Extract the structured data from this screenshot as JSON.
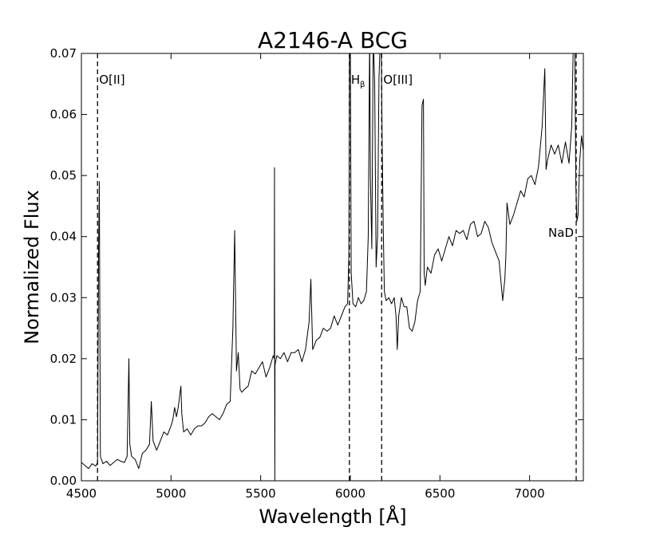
{
  "chart_data": {
    "type": "line",
    "title": "A2146-A BCG",
    "xlabel": "Wavelength [Å]",
    "ylabel": "Normalized Flux",
    "xlim": [
      4500,
      7300
    ],
    "ylim": [
      0,
      0.07
    ],
    "xticks": [
      4500,
      5000,
      5500,
      6000,
      6500,
      7000
    ],
    "xtick_labels": [
      "4500",
      "5000",
      "5500",
      "6000",
      "6500",
      "7000"
    ],
    "yticks": [
      0,
      0.01,
      0.02,
      0.03,
      0.04,
      0.05,
      0.06,
      0.07
    ],
    "ytick_labels": [
      "0.00",
      "0.01",
      "0.02",
      "0.03",
      "0.04",
      "0.05",
      "0.06",
      "0.07"
    ],
    "grid": false,
    "line_color": "#000000",
    "series": [
      {
        "x": [
          4500,
          4520,
          4540,
          4560,
          4580,
          4590,
          4596,
          4600,
          4606,
          4620,
          4640,
          4660,
          4680,
          4700,
          4720,
          4740,
          4755,
          4765,
          4770,
          4780,
          4800,
          4820,
          4840,
          4860,
          4880,
          4890,
          4900,
          4920,
          4940,
          4960,
          4980,
          5000,
          5010,
          5020,
          5030,
          5040,
          5055,
          5060,
          5070,
          5090,
          5110,
          5130,
          5150,
          5170,
          5190,
          5210,
          5230,
          5250,
          5270,
          5290,
          5310,
          5330,
          5345,
          5355,
          5365,
          5375,
          5385,
          5395,
          5410,
          5430,
          5450,
          5470,
          5490,
          5510,
          5530,
          5550,
          5570,
          5576,
          5577,
          5578,
          5579,
          5580,
          5590,
          5610,
          5630,
          5650,
          5670,
          5690,
          5710,
          5730,
          5750,
          5770,
          5780,
          5790,
          5810,
          5830,
          5850,
          5870,
          5890,
          5910,
          5930,
          5950,
          5970,
          5985,
          5992,
          5996,
          6000,
          6005,
          6015,
          6030,
          6045,
          6060,
          6075,
          6090,
          6100,
          6108,
          6112,
          6120,
          6128,
          6136,
          6144,
          6152,
          6160,
          6168,
          6172,
          6178,
          6184,
          6190,
          6200,
          6215,
          6230,
          6245,
          6255,
          6262,
          6270,
          6285,
          6300,
          6315,
          6330,
          6345,
          6360,
          6375,
          6390,
          6400,
          6408,
          6412,
          6418,
          6430,
          6450,
          6470,
          6490,
          6510,
          6530,
          6550,
          6570,
          6590,
          6610,
          6630,
          6650,
          6670,
          6690,
          6710,
          6730,
          6750,
          6770,
          6790,
          6810,
          6830,
          6850,
          6862,
          6868,
          6874,
          6890,
          6910,
          6930,
          6950,
          6970,
          6990,
          7010,
          7030,
          7050,
          7070,
          7085,
          7092,
          7100,
          7120,
          7140,
          7160,
          7180,
          7200,
          7220,
          7235,
          7245,
          7252,
          7258,
          7264,
          7270,
          7280,
          7290,
          7300
        ],
        "y": [
          0.003,
          0.0025,
          0.002,
          0.0028,
          0.0024,
          0.003,
          0.038,
          0.049,
          0.004,
          0.0028,
          0.0032,
          0.0025,
          0.003,
          0.0035,
          0.0032,
          0.003,
          0.004,
          0.02,
          0.006,
          0.004,
          0.0035,
          0.002,
          0.0045,
          0.005,
          0.006,
          0.013,
          0.0065,
          0.005,
          0.0065,
          0.008,
          0.0075,
          0.009,
          0.01,
          0.012,
          0.0105,
          0.012,
          0.0155,
          0.011,
          0.008,
          0.0085,
          0.0075,
          0.0085,
          0.009,
          0.009,
          0.0095,
          0.0105,
          0.011,
          0.0105,
          0.01,
          0.011,
          0.0125,
          0.013,
          0.025,
          0.041,
          0.018,
          0.021,
          0.015,
          0.0145,
          0.015,
          0.0155,
          0.018,
          0.0175,
          0.0185,
          0.0195,
          0.017,
          0.0185,
          0.0205,
          0.02,
          0.0513,
          0.021,
          0.0,
          0.019,
          0.0205,
          0.02,
          0.021,
          0.0195,
          0.021,
          0.021,
          0.0215,
          0.0195,
          0.0215,
          0.026,
          0.033,
          0.0215,
          0.023,
          0.0235,
          0.025,
          0.0245,
          0.025,
          0.027,
          0.0255,
          0.027,
          0.0285,
          0.029,
          0.037,
          0.073,
          0.073,
          0.034,
          0.029,
          0.0285,
          0.03,
          0.029,
          0.0295,
          0.031,
          0.04,
          0.073,
          0.05,
          0.038,
          0.073,
          0.065,
          0.035,
          0.04,
          0.066,
          0.073,
          0.073,
          0.055,
          0.041,
          0.031,
          0.0295,
          0.03,
          0.029,
          0.03,
          0.027,
          0.0215,
          0.027,
          0.03,
          0.0285,
          0.0285,
          0.025,
          0.0245,
          0.026,
          0.0295,
          0.031,
          0.0615,
          0.0625,
          0.034,
          0.032,
          0.035,
          0.034,
          0.037,
          0.038,
          0.036,
          0.038,
          0.04,
          0.0385,
          0.041,
          0.0405,
          0.041,
          0.0395,
          0.042,
          0.0425,
          0.04,
          0.0405,
          0.0425,
          0.0415,
          0.039,
          0.0375,
          0.036,
          0.0295,
          0.033,
          0.037,
          0.0455,
          0.042,
          0.0435,
          0.0455,
          0.0475,
          0.0465,
          0.0495,
          0.05,
          0.0485,
          0.0515,
          0.058,
          0.0675,
          0.051,
          0.0525,
          0.055,
          0.0535,
          0.055,
          0.052,
          0.0555,
          0.052,
          0.058,
          0.073,
          0.073,
          0.0485,
          0.0425,
          0.0435,
          0.0525,
          0.0565,
          0.054
        ]
      }
    ],
    "line_markers": [
      {
        "x": 4590,
        "label": "O[II]",
        "label_side": "right"
      },
      {
        "x": 5995,
        "label": "H",
        "subscript": "β",
        "label_side": "right"
      },
      {
        "x": 6175,
        "label": "O[III]",
        "label_side": "right"
      },
      {
        "x": 7260,
        "label": "NaD",
        "label_side": "left"
      }
    ]
  }
}
